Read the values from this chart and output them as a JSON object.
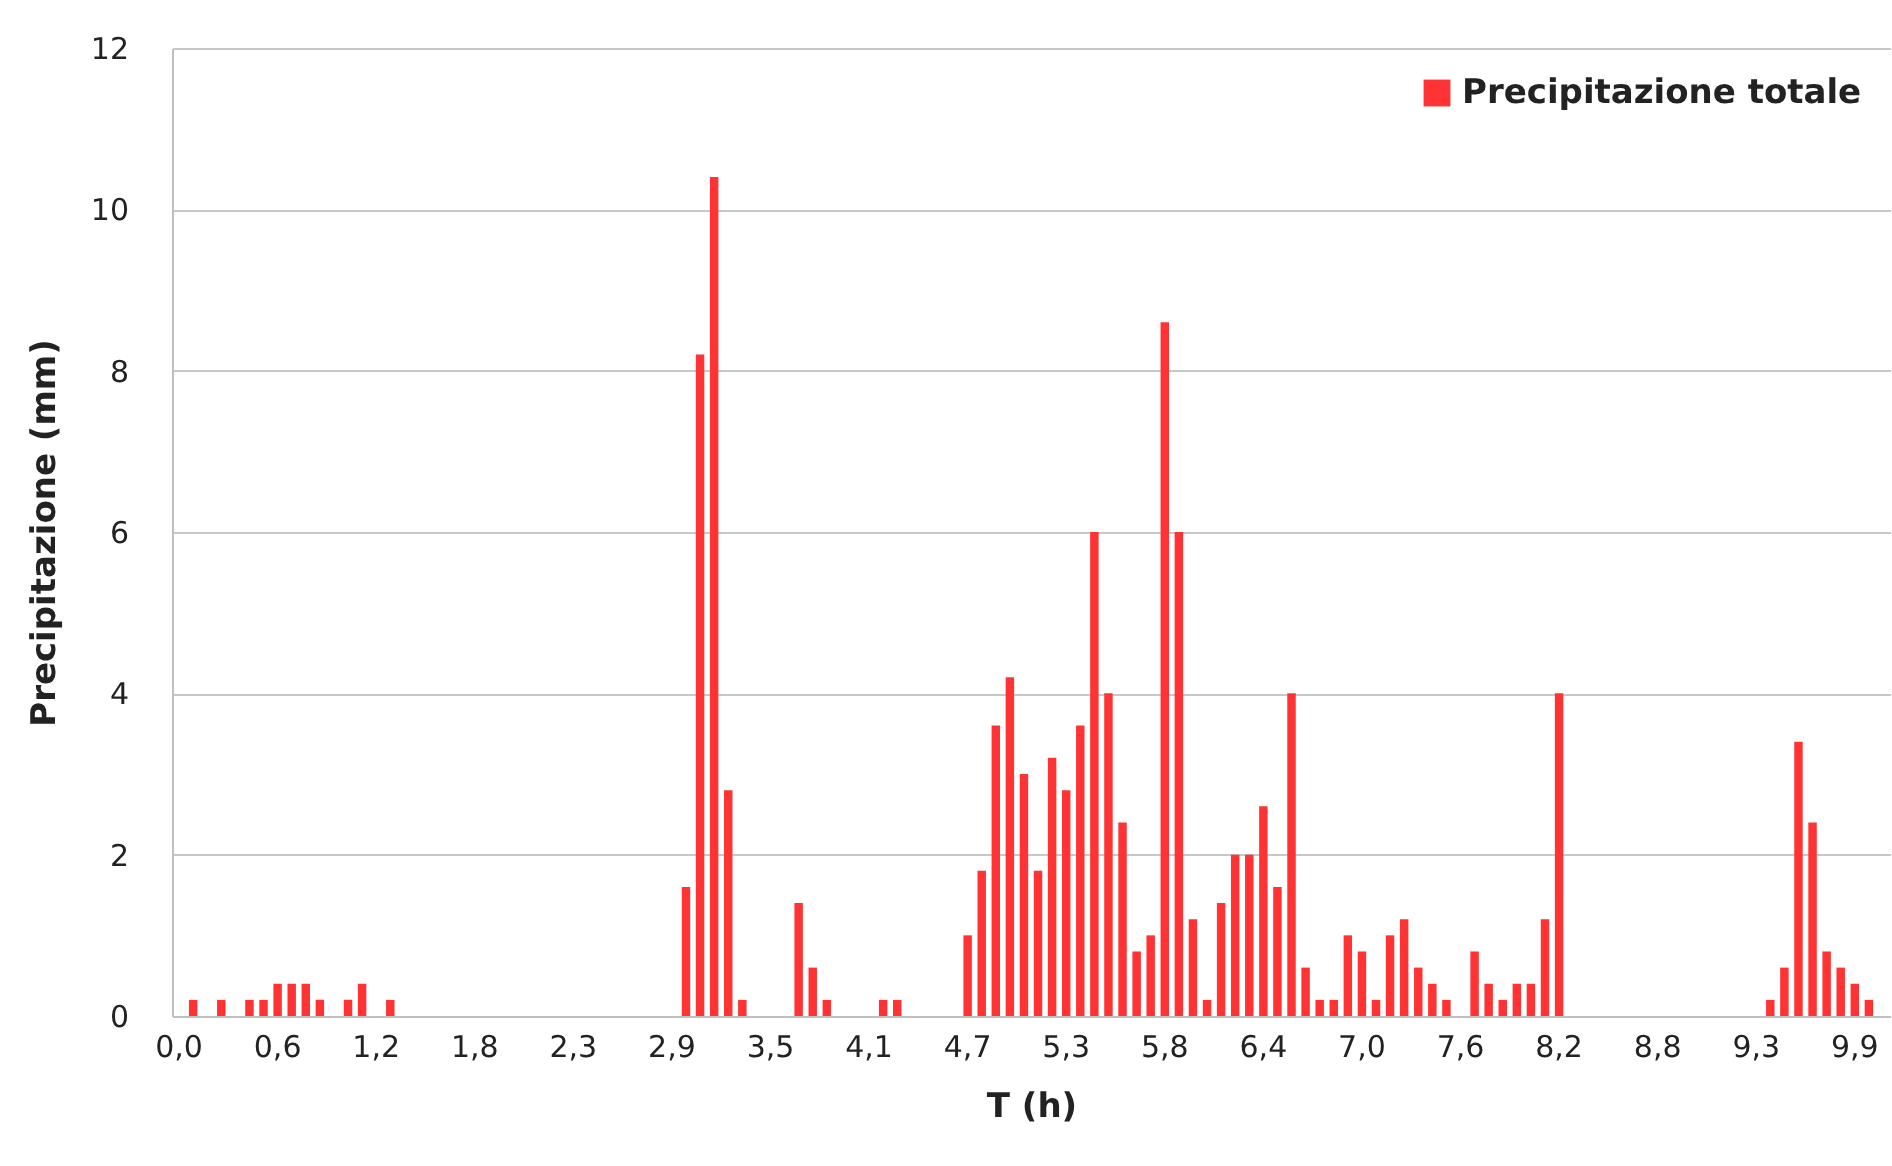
{
  "chart_data": {
    "type": "bar",
    "xlabel": "T (h)",
    "ylabel": "Precipitazione (mm)",
    "categories": [
      "0,0",
      null,
      null,
      null,
      null,
      null,
      null,
      "0,6",
      null,
      null,
      null,
      null,
      null,
      null,
      "1,2",
      null,
      null,
      null,
      null,
      null,
      null,
      "1,8",
      null,
      null,
      null,
      null,
      null,
      null,
      "2,3",
      null,
      null,
      null,
      null,
      null,
      null,
      "2,9",
      null,
      null,
      null,
      null,
      null,
      null,
      "3,5",
      null,
      null,
      null,
      null,
      null,
      null,
      "4,1",
      null,
      null,
      null,
      null,
      null,
      null,
      "4,7",
      null,
      null,
      null,
      null,
      null,
      null,
      "5,3",
      null,
      null,
      null,
      null,
      null,
      null,
      "5,8",
      null,
      null,
      null,
      null,
      null,
      null,
      "6,4",
      null,
      null,
      null,
      null,
      null,
      null,
      "7,0",
      null,
      null,
      null,
      null,
      null,
      null,
      "7,6",
      null,
      null,
      null,
      null,
      null,
      null,
      "8,2",
      null,
      null,
      null,
      null,
      null,
      null,
      "8,8",
      null,
      null,
      null,
      null,
      null,
      null,
      "9,3",
      null,
      null,
      null,
      null,
      null,
      null,
      "9,9",
      null,
      null
    ],
    "series": [
      {
        "name": "Precipitazione totale",
        "color": "#ff3333",
        "values": [
          0,
          0.2,
          0,
          0.2,
          0,
          0.2,
          0.2,
          0.4,
          0.4,
          0.4,
          0.2,
          0,
          0.2,
          0.4,
          0,
          0.2,
          0,
          0,
          0,
          0,
          0,
          0,
          0,
          0,
          0,
          0,
          0,
          0,
          0,
          0,
          0,
          0,
          0,
          0,
          0,
          0,
          1.6,
          8.2,
          10.4,
          2.8,
          0.2,
          0,
          0,
          0,
          1.4,
          0.6,
          0.2,
          0,
          0,
          0,
          0.2,
          0.2,
          0,
          0,
          0,
          0,
          1.0,
          1.8,
          3.6,
          4.2,
          3.0,
          1.8,
          3.2,
          2.8,
          3.6,
          6.0,
          4.0,
          2.4,
          0.8,
          1.0,
          8.6,
          6.0,
          1.2,
          0.2,
          1.4,
          2.0,
          2.0,
          2.6,
          1.6,
          4.0,
          0.6,
          0.2,
          0.2,
          1.0,
          0.8,
          0.2,
          1.0,
          1.2,
          0.6,
          0.4,
          0.2,
          0,
          0.8,
          0.4,
          0.2,
          0.4,
          0.4,
          1.2,
          4.0,
          0,
          0,
          0,
          0,
          0,
          0,
          0,
          0,
          0,
          0,
          0,
          0,
          0,
          0,
          0.2,
          0.6,
          3.4,
          2.4,
          0.8,
          0.6,
          0.4,
          0.2,
          0
        ]
      }
    ],
    "ylim": [
      0,
      12
    ],
    "yticks": [
      0,
      2,
      4,
      6,
      8,
      10,
      12
    ],
    "grid": "y",
    "legend": "top right"
  }
}
